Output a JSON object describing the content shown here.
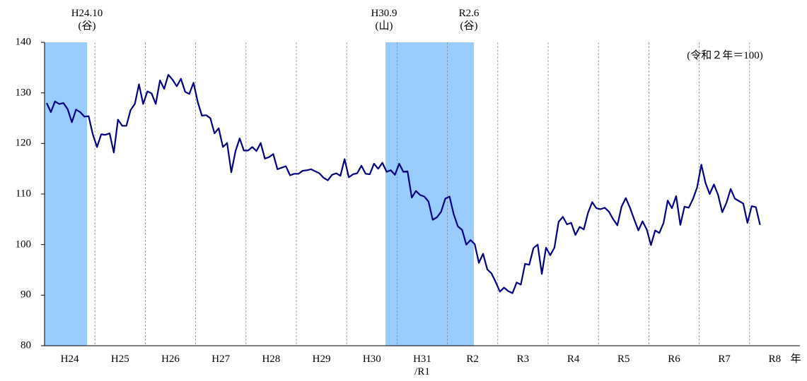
{
  "chart_data": {
    "type": "line",
    "note": "(令和２年＝100)",
    "x_unit": "年",
    "annotations": [
      "H24.10\n(谷)",
      "H30.9\n(山)",
      "R2.6\n(谷)"
    ],
    "categories": [
      "H24",
      "H25",
      "H26",
      "H27",
      "H28",
      "H29",
      "H30",
      "H31\n/R1",
      "R2",
      "R3",
      "R4",
      "R5",
      "R6",
      "R7",
      "R8"
    ],
    "color": "#000080",
    "values": [
      [
        128,
        126.2,
        128.3,
        127.8,
        128,
        126.8,
        124.2,
        126.7,
        126.2,
        125.3,
        125.4,
        121.8
      ],
      [
        119.3,
        121.8,
        121.7,
        122,
        118.2,
        124.7,
        123.5,
        123.5,
        126.6,
        127.8,
        131.7,
        127.8
      ],
      [
        130.3,
        129.9,
        127.8,
        132.5,
        130.8,
        133.6,
        132.6,
        131.3,
        132.8,
        130.2,
        129.8,
        132
      ],
      [
        128.2,
        125.5,
        125.6,
        125,
        122,
        123,
        119.3,
        120.1,
        114.3,
        118.5,
        121,
        118.6
      ],
      [
        118.6,
        119.3,
        118.5,
        120.1,
        117,
        117.3,
        117.9,
        114.9,
        115.2,
        115.5,
        113.7,
        114
      ],
      [
        114,
        114.6,
        114.7,
        114.9,
        114.5,
        114.1,
        113.2,
        112.7,
        113.8,
        114.1,
        113.6,
        116.9
      ],
      [
        113.3,
        113.9,
        114.1,
        115.6,
        114,
        113.9,
        116,
        115,
        116.2,
        114.4,
        114.7,
        113.8
      ],
      [
        116,
        114.4,
        114.5,
        109.3,
        110.6,
        109.8,
        109.5,
        108.5,
        104.9,
        105.4,
        106.5,
        109.1
      ],
      [
        109.5,
        106,
        103.6,
        102.9,
        100,
        100.9,
        100.1,
        96.4,
        98.2,
        95.1,
        94.3,
        92.6
      ],
      [
        90.7,
        91.5,
        90.8,
        90.4,
        92.5,
        92.1,
        96.2,
        96,
        99.3,
        100,
        94.2,
        99.4
      ],
      [
        97.9,
        99.4,
        104.5,
        105.5,
        104,
        104.3,
        101.9,
        103.5,
        103,
        106.3,
        108.4,
        107.2
      ],
      [
        107,
        107.3,
        106.5,
        105,
        103.8,
        107.5,
        109.2,
        107.3,
        105,
        102.8,
        104.6,
        103
      ],
      [
        99.9,
        102.8,
        102.3,
        104.3,
        108.7,
        107.2,
        109.6,
        103.9,
        107.5,
        107.3,
        109,
        111.3
      ],
      [
        115.8,
        112.2,
        110,
        111.9,
        109.8,
        106.4,
        108.3,
        111,
        109.1,
        108.6,
        108.1,
        104.3
      ],
      [
        107.6,
        107.4,
        103.9
      ]
    ],
    "ylim": [
      80,
      140
    ],
    "yticks": [
      80,
      90,
      100,
      110,
      120,
      130,
      140
    ]
  }
}
